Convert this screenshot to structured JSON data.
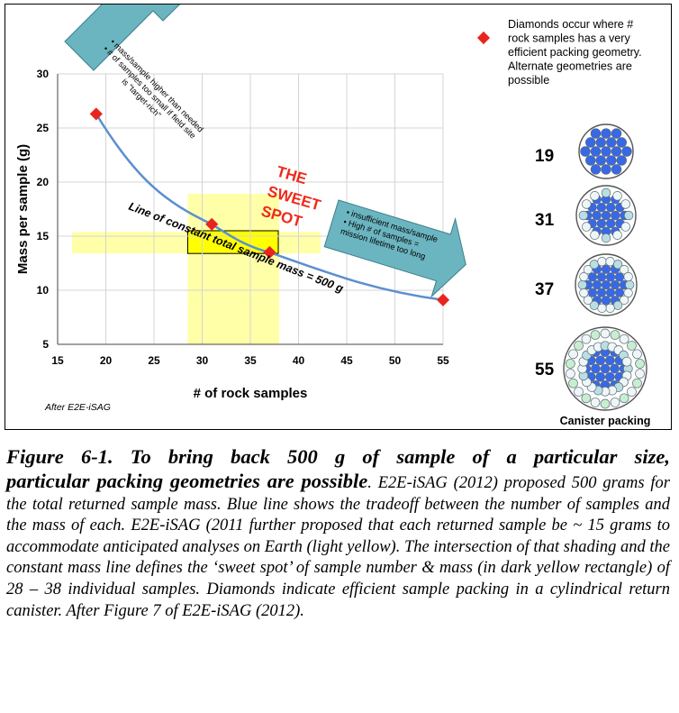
{
  "chart_data": {
    "type": "line",
    "xlabel": "# of rock samples",
    "ylabel": "Mass per sample (g)",
    "xlim": [
      15,
      55
    ],
    "ylim": [
      5,
      30
    ],
    "xticks": [
      "15",
      "20",
      "25",
      "30",
      "35",
      "40",
      "45",
      "50",
      "55"
    ],
    "yticks": [
      "5",
      "10",
      "15",
      "20",
      "25",
      "30"
    ],
    "series": [
      {
        "x": [
          19,
          31,
          37,
          55
        ],
        "y": [
          26.3,
          16.1,
          13.5,
          9.1
        ],
        "color": "#5b8fd0",
        "marker": "diamond",
        "marker_color": "#e8251c"
      }
    ],
    "light_yellow_bands": {
      "vertical_x": [
        28.5,
        38
      ],
      "horizontal_y": [
        13.4,
        15.4
      ]
    },
    "sweet_spot_rect": {
      "x": [
        28.5,
        37.9
      ],
      "y": [
        13.4,
        15.5
      ]
    },
    "line_label": "Line of constant total sample mass = 500 g",
    "sweet_spot_label": [
      "THE",
      "SWEET",
      "SPOT"
    ],
    "arrow_up_text": [
      "• mass/sample higher than needed",
      "• # of samples too small if field site",
      "is \"target-rich\""
    ],
    "arrow_right_text": [
      "• insufficient mass/sample",
      "• High # of samples =",
      "mission lifetime too long"
    ],
    "credit": "After E2E-iSAG",
    "legend_text": [
      "Diamonds occur where  #",
      "rock samples has a very",
      "efficient packing geometry.",
      "Alternate geometries are",
      "possible"
    ],
    "packings": [
      "19",
      "31",
      "37",
      "55"
    ],
    "packing_title": "Canister packing",
    "colors": {
      "blue": "#3768e6",
      "teal": "#b9dfe2",
      "green": "#c7eed0",
      "pale": "#eef6f7",
      "yellow_light": "#ffff99",
      "yellow_dark": "#ffff00",
      "arrow": "#6bb5c0"
    }
  },
  "caption": {
    "bold_line1": "Figure 6-1. To bring back 500 g of sample of a particular size,",
    "bold_line2": "particular packing geometries are possible",
    "body": ". E2E-iSAG (2012) proposed 500 grams for the total returned sample mass. Blue line shows the tradeoff between the number of samples and the mass of each. E2E-iSAG (2011 further proposed that each returned sample be ~ 15 grams to accommodate anticipated analyses on Earth (light yellow). The intersection of that shading and the constant mass line defines the ‘sweet spot’ of sample number & mass (in dark yellow rectangle) of 28 – 38 individual samples. Diamonds indicate efficient sample packing in a cylindrical return canister. After Figure 7 of E2E-iSAG (2012)."
  }
}
